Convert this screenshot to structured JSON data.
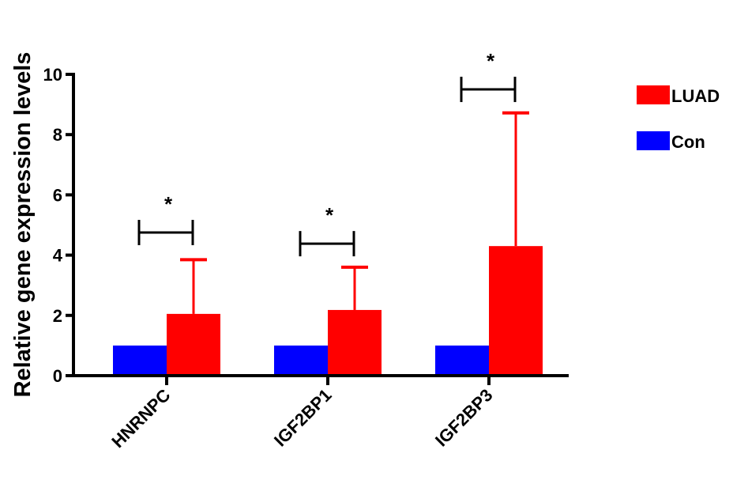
{
  "chart_data": {
    "type": "bar",
    "title": "",
    "xlabel": "",
    "ylabel": "Relative gene expression levels",
    "ylim": [
      0,
      10
    ],
    "yticks": [
      0,
      2,
      4,
      6,
      8,
      10
    ],
    "categories": [
      "HNRNPC",
      "IGF2BP1",
      "IGF2BP3"
    ],
    "series": [
      {
        "name": "Con",
        "color": "#0000ff",
        "values": [
          1.0,
          1.0,
          1.0
        ]
      },
      {
        "name": "LUAD",
        "color": "#ff0000",
        "values": [
          2.05,
          2.18,
          4.3
        ],
        "error_upper": [
          3.85,
          3.6,
          8.72
        ],
        "error_lower": [
          null,
          null,
          0.0
        ]
      }
    ],
    "significance": [
      {
        "category": "HNRNPC",
        "label": "*",
        "level": 4.75
      },
      {
        "category": "IGF2BP1",
        "label": "*",
        "level": 4.38
      },
      {
        "category": "IGF2BP3",
        "label": "*",
        "level": 9.5
      }
    ],
    "legend": {
      "placement": "right",
      "entries": [
        "LUAD",
        "Con"
      ]
    },
    "grid": false
  }
}
